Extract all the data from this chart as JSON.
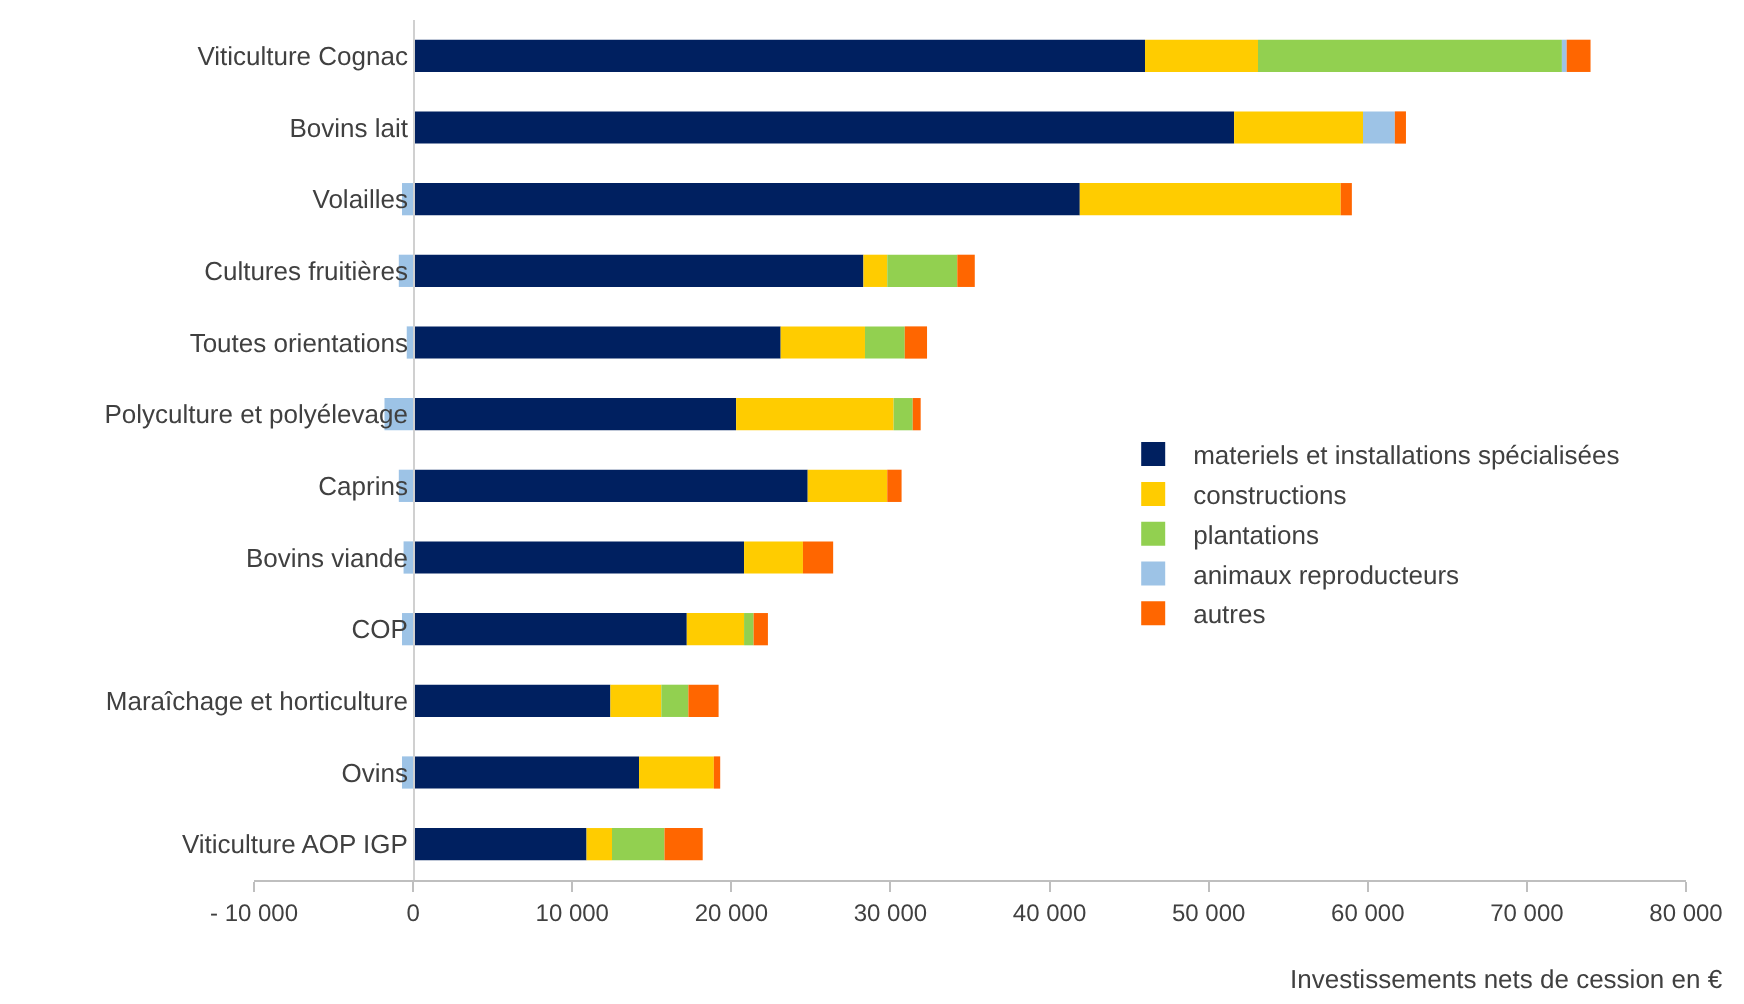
{
  "chart_data": {
    "type": "bar",
    "orientation": "horizontal",
    "stacked": true,
    "xlabel": "Investissements nets de cession en €",
    "categories": [
      "Viticulture Cognac",
      "Bovins lait",
      "Volailles",
      "Cultures fruitières",
      "Toutes orientations",
      "Polyculture et polyélevage",
      "Caprins",
      "Bovins viande",
      "COP",
      "Maraîchage et horticulture",
      "Ovins",
      "Viticulture AOP IGP"
    ],
    "series": [
      {
        "name": "materiels et installations spécialisées",
        "color": "#002060",
        "values": [
          46000,
          51600,
          41900,
          28300,
          23100,
          20300,
          24800,
          20800,
          17200,
          12400,
          14200,
          10900
        ]
      },
      {
        "name": "constructions",
        "color": "#ffcc00",
        "values": [
          7100,
          8100,
          16400,
          1500,
          5300,
          9900,
          5000,
          3700,
          3600,
          3200,
          4700,
          1600
        ]
      },
      {
        "name": "plantations",
        "color": "#92d050",
        "values": [
          19100,
          null,
          null,
          4400,
          2500,
          1200,
          null,
          null,
          600,
          1700,
          null,
          3300
        ]
      },
      {
        "name": "animaux reproducteurs",
        "color": "#9dc3e6",
        "values": [
          300,
          2000,
          -700,
          -900,
          -400,
          -1800,
          -900,
          -600,
          -700,
          null,
          -700,
          null
        ]
      },
      {
        "name": "autres",
        "color": "#ff6600",
        "values": [
          1500,
          700,
          700,
          1100,
          1400,
          500,
          900,
          1900,
          900,
          1900,
          400,
          2400
        ]
      }
    ],
    "xlim": [
      -10000,
      80000
    ],
    "xticks": [
      {
        "value": -10000,
        "label": "- 10 000"
      },
      0,
      {
        "value": 10000,
        "label": "10 000"
      },
      {
        "value": 20000,
        "label": "20 000"
      },
      {
        "value": 30000,
        "label": "30 000"
      },
      {
        "value": 40000,
        "label": "40 000"
      },
      {
        "value": 50000,
        "label": "50 000"
      },
      {
        "value": 60000,
        "label": "60 000"
      },
      {
        "value": 70000,
        "label": "70 000"
      },
      {
        "value": 80000,
        "label": "80 000"
      }
    ],
    "grid": false,
    "legend": "right"
  }
}
